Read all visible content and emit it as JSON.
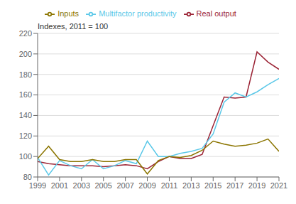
{
  "chart_data": {
    "type": "line",
    "y_label": "Indexes, 2011 = 100",
    "x": [
      1999,
      2000,
      2001,
      2002,
      2003,
      2004,
      2005,
      2006,
      2007,
      2008,
      2009,
      2010,
      2011,
      2012,
      2013,
      2014,
      2015,
      2016,
      2017,
      2018,
      2019,
      2020,
      2021
    ],
    "series": [
      {
        "name": "Real output",
        "color": "#9b2335",
        "values": [
          95,
          93,
          92,
          91,
          91,
          91,
          90,
          91,
          92,
          91,
          88,
          95,
          100,
          98,
          98,
          102,
          130,
          158,
          157,
          158,
          202,
          192,
          185
        ]
      },
      {
        "name": "Multifactor productivity",
        "color": "#5bc8e8",
        "values": [
          99,
          82,
          96,
          91,
          88,
          97,
          88,
          91,
          96,
          93,
          115,
          100,
          100,
          103,
          105,
          108,
          122,
          153,
          162,
          158,
          163,
          170,
          176
        ]
      },
      {
        "name": "Inputs",
        "color": "#8b7500",
        "values": [
          98,
          110,
          97,
          95,
          95,
          97,
          95,
          95,
          97,
          97,
          83,
          96,
          100,
          99,
          101,
          106,
          115,
          112,
          110,
          111,
          113,
          117,
          105
        ]
      }
    ],
    "xlim": [
      1999,
      2021
    ],
    "xticks": [
      1999,
      2001,
      2003,
      2005,
      2007,
      2009,
      2011,
      2013,
      2015,
      2017,
      2019,
      2021
    ],
    "ylim": [
      80,
      220
    ],
    "yticks": [
      80,
      100,
      120,
      140,
      160,
      180,
      200,
      220
    ],
    "grid": "y",
    "legend": "top"
  }
}
